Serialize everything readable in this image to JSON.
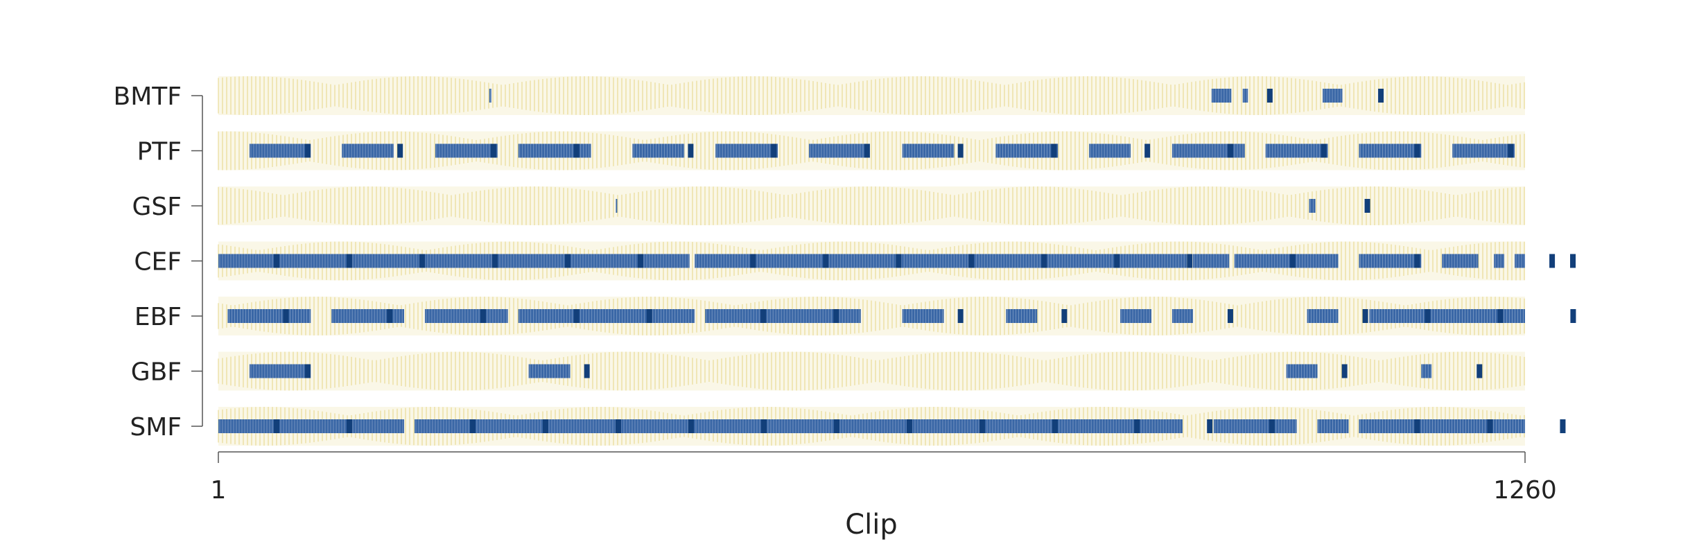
{
  "chart_data": {
    "type": "heatmap",
    "title": "",
    "xlabel": "Clip",
    "ylabel": "",
    "x_range": [
      1,
      1260
    ],
    "x_ticks": [
      1,
      1260
    ],
    "rows": [
      "BMTF",
      "PTF",
      "GSF",
      "CEF",
      "EBF",
      "GBF",
      "SMF"
    ],
    "colors": {
      "background_band": "#e3d27a",
      "selected": "#3a67a6",
      "emphasis": "#123f7a",
      "axis": "#555555",
      "text": "#222222"
    },
    "selected_segments": {
      "BMTF": [
        [
          262,
          264
        ],
        [
          958,
          977
        ],
        [
          988,
          993
        ],
        [
          1065,
          1084
        ]
      ],
      "PTF": [
        [
          31,
          90
        ],
        [
          120,
          170
        ],
        [
          210,
          270
        ],
        [
          290,
          360
        ],
        [
          400,
          450
        ],
        [
          480,
          540
        ],
        [
          570,
          625
        ],
        [
          660,
          710
        ],
        [
          750,
          810
        ],
        [
          840,
          880
        ],
        [
          920,
          990
        ],
        [
          1010,
          1070
        ],
        [
          1100,
          1160
        ],
        [
          1190,
          1250
        ]
      ],
      "GSF": [
        [
          384,
          385
        ],
        [
          1052,
          1058
        ]
      ],
      "CEF": [
        [
          1,
          455
        ],
        [
          460,
          934
        ],
        [
          940,
          975
        ],
        [
          980,
          1080
        ],
        [
          1100,
          1160
        ],
        [
          1180,
          1215
        ],
        [
          1230,
          1240
        ],
        [
          1250,
          1260
        ]
      ],
      "EBF": [
        [
          10,
          90
        ],
        [
          110,
          180
        ],
        [
          200,
          280
        ],
        [
          290,
          460
        ],
        [
          470,
          620
        ],
        [
          660,
          700
        ],
        [
          760,
          790
        ],
        [
          870,
          900
        ],
        [
          920,
          940
        ],
        [
          1050,
          1080
        ],
        [
          1110,
          1260
        ]
      ],
      "GBF": [
        [
          31,
          90
        ],
        [
          300,
          340
        ],
        [
          1030,
          1060
        ],
        [
          1160,
          1170
        ]
      ],
      "SMF": [
        [
          1,
          180
        ],
        [
          190,
          830
        ],
        [
          835,
          900
        ],
        [
          830,
          900
        ],
        [
          830,
          930
        ],
        [
          960,
          1040
        ],
        [
          1060,
          1090
        ],
        [
          1100,
          1260
        ]
      ]
    }
  }
}
